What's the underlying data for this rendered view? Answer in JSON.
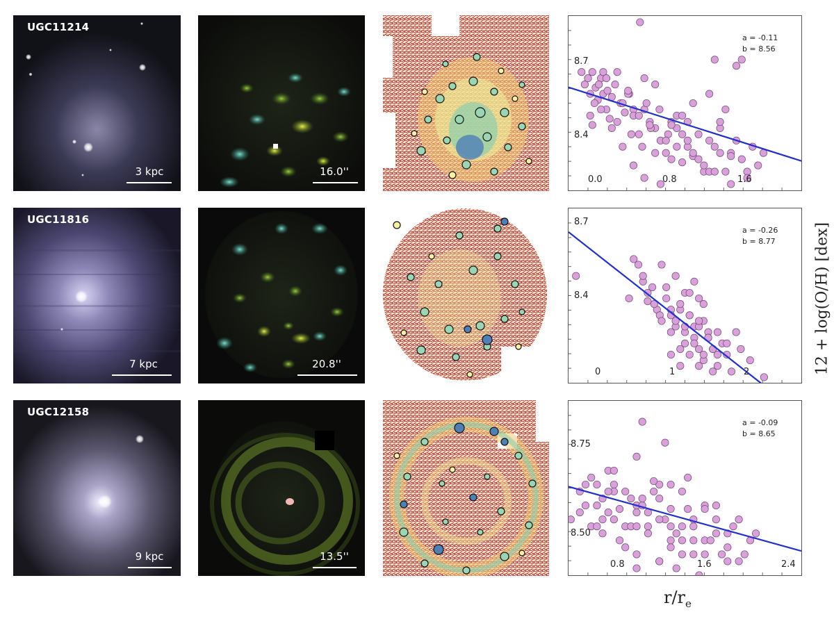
{
  "rows": [
    {
      "galaxy": "UGC11214",
      "physical_scale": "3 kpc",
      "angular_scale": "16.0''",
      "fit": {
        "a_label": "a = -0.11",
        "b_label": "b = 8.56",
        "slope": -0.11,
        "intercept": 8.56
      },
      "xticks": [
        "0.0",
        "0.8",
        "1.6"
      ],
      "yticks": [
        "8.7",
        "8.4"
      ]
    },
    {
      "galaxy": "UGC11816",
      "physical_scale": "7 kpc",
      "angular_scale": "20.8''",
      "fit": {
        "a_label": "a = -0.26",
        "b_label": "b = 8.77",
        "slope": -0.26,
        "intercept": 8.77
      },
      "xticks": [
        "0",
        "1",
        "2"
      ],
      "yticks": [
        "8.7",
        "8.4"
      ]
    },
    {
      "galaxy": "UGC12158",
      "physical_scale": "9 kpc",
      "angular_scale": "13.5''",
      "fit": {
        "a_label": "a = -0.09",
        "b_label": "b = 8.65",
        "slope": -0.09,
        "intercept": 8.65
      },
      "xticks": [
        "0.8",
        "1.6",
        "2.4"
      ],
      "yticks": [
        "8.75",
        "8.50"
      ]
    }
  ],
  "axis_labels": {
    "x": "r/r",
    "x_sub": "e",
    "y": "12 + log(O/H) [dex]"
  },
  "chart_data": [
    {
      "type": "scatter",
      "title": "",
      "xlabel": "r/re",
      "ylabel": "12 + log(O/H) [dex]",
      "xlim": [
        -0.1,
        2.05
      ],
      "ylim": [
        8.24,
        8.8
      ],
      "grid": false,
      "legend": "none",
      "annotations": [
        "a = -0.11",
        "b = 8.56"
      ],
      "fit_line": {
        "slope": -0.11,
        "intercept": 8.56
      },
      "series": [
        {
          "color": "#d9a0d9",
          "x": [
            0.02,
            0.05,
            0.08,
            0.1,
            0.12,
            0.15,
            0.17,
            0.2,
            0.22,
            0.25,
            0.1,
            0.14,
            0.18,
            0.22,
            0.26,
            0.3,
            0.12,
            0.2,
            0.28,
            0.33,
            0.38,
            0.42,
            0.46,
            0.5,
            0.3,
            0.35,
            0.4,
            0.45,
            0.5,
            0.55,
            0.6,
            0.65,
            0.4,
            0.48,
            0.55,
            0.62,
            0.7,
            0.75,
            0.8,
            0.85,
            0.5,
            0.58,
            0.66,
            0.74,
            0.82,
            0.9,
            0.95,
            1.0,
            0.6,
            0.7,
            0.8,
            0.9,
            1.0,
            1.05,
            1.1,
            1.15,
            1.2,
            0.75,
            0.85,
            0.95,
            1.05,
            1.15,
            1.25,
            1.3,
            1.35,
            1.4,
            0.9,
            1.0,
            1.1,
            1.2,
            1.3,
            1.4,
            1.45,
            1.5,
            1.55,
            1.6,
            1.65,
            1.1,
            1.25,
            1.4,
            1.55,
            0.56,
            0.7,
            1.25,
            1.45,
            1.5,
            0.35,
            0.65,
            0.95,
            1.2,
            1.35,
            0.45,
            0.25,
            0.6,
            1.05,
            1.3,
            0.85,
            1.7
          ],
          "y": [
            8.62,
            8.58,
            8.6,
            8.55,
            8.62,
            8.57,
            8.53,
            8.6,
            8.55,
            8.5,
            8.48,
            8.52,
            8.58,
            8.62,
            8.56,
            8.54,
            8.45,
            8.5,
            8.47,
            8.58,
            8.52,
            8.49,
            8.55,
            8.5,
            8.44,
            8.46,
            8.52,
            8.55,
            8.48,
            8.42,
            8.5,
            8.46,
            8.38,
            8.42,
            8.48,
            8.52,
            8.44,
            8.4,
            8.36,
            8.46,
            8.32,
            8.38,
            8.44,
            8.5,
            8.42,
            8.38,
            8.33,
            8.46,
            8.28,
            8.36,
            8.4,
            8.44,
            8.38,
            8.35,
            8.42,
            8.3,
            8.4,
            8.26,
            8.34,
            8.42,
            8.36,
            8.32,
            8.38,
            8.44,
            8.3,
            8.36,
            8.48,
            8.4,
            8.34,
            8.3,
            8.36,
            8.26,
            8.4,
            8.34,
            8.3,
            8.38,
            8.32,
            8.22,
            8.3,
            8.35,
            8.28,
            8.78,
            8.58,
            8.66,
            8.64,
            8.66,
            8.62,
            8.45,
            8.48,
            8.55,
            8.5,
            8.56,
            8.6,
            8.6,
            8.52,
            8.46,
            8.45,
            8.36
          ]
        }
      ]
    },
    {
      "type": "scatter",
      "title": "",
      "xlabel": "r/re",
      "ylabel": "12 + log(O/H) [dex]",
      "xlim": [
        -0.1,
        2.4
      ],
      "ylim": [
        8.26,
        8.88
      ],
      "grid": false,
      "legend": "none",
      "annotations": [
        "a = -0.26",
        "b = 8.77"
      ],
      "fit_line": {
        "slope": -0.26,
        "intercept": 8.77
      },
      "series": [
        {
          "color": "#d9a0d9",
          "x": [
            -0.02,
            0.55,
            0.65,
            0.7,
            0.75,
            0.8,
            0.85,
            0.6,
            0.7,
            0.75,
            0.82,
            0.88,
            0.95,
            1.0,
            0.9,
            0.95,
            1.0,
            1.05,
            1.1,
            1.15,
            1.0,
            1.05,
            1.1,
            1.15,
            1.2,
            1.25,
            1.3,
            1.1,
            1.15,
            1.2,
            1.25,
            1.3,
            1.35,
            1.4,
            1.2,
            1.25,
            1.3,
            1.35,
            1.4,
            1.45,
            1.5,
            1.3,
            1.35,
            1.4,
            1.45,
            1.5,
            1.55,
            1.6,
            1.65,
            1.7,
            1.75,
            1.85,
            2.0,
            1.25,
            1.35,
            0.9,
            1.05,
            1.2,
            1.15,
            1.3,
            1.4,
            1.5,
            1.6,
            1.45,
            1.0,
            1.1
          ],
          "y": [
            8.64,
            8.56,
            8.68,
            8.62,
            8.55,
            8.6,
            8.52,
            8.7,
            8.64,
            8.58,
            8.54,
            8.5,
            8.6,
            8.52,
            8.48,
            8.56,
            8.5,
            8.46,
            8.52,
            8.58,
            8.44,
            8.48,
            8.54,
            8.4,
            8.5,
            8.46,
            8.56,
            8.38,
            8.44,
            8.5,
            8.42,
            8.38,
            8.48,
            8.44,
            8.36,
            8.4,
            8.46,
            8.34,
            8.42,
            8.38,
            8.44,
            8.32,
            8.36,
            8.42,
            8.38,
            8.32,
            8.4,
            8.36,
            8.3,
            8.44,
            8.38,
            8.34,
            8.28,
            8.62,
            8.54,
            8.68,
            8.64,
            8.58,
            8.46,
            8.48,
            8.42,
            8.36,
            8.4,
            8.3,
            8.36,
            8.32
          ]
        }
      ]
    },
    {
      "type": "scatter",
      "title": "",
      "xlabel": "r/re",
      "ylabel": "12 + log(O/H) [dex]",
      "xlim": [
        0.4,
        2.45
      ],
      "ylim": [
        8.36,
        8.86
      ],
      "grid": false,
      "legend": "none",
      "annotations": [
        "a = -0.09",
        "b = 8.65"
      ],
      "fit_line": {
        "slope": -0.09,
        "intercept": 8.65
      },
      "series": [
        {
          "color": "#d9a0d9",
          "x": [
            0.42,
            0.5,
            0.55,
            0.6,
            0.65,
            0.7,
            0.75,
            0.8,
            0.6,
            0.65,
            0.7,
            0.75,
            0.8,
            0.85,
            0.9,
            0.95,
            1.0,
            0.7,
            0.8,
            0.9,
            1.0,
            1.1,
            1.2,
            1.3,
            0.85,
            0.95,
            1.05,
            1.15,
            1.25,
            1.35,
            1.45,
            0.9,
            1.0,
            1.1,
            1.2,
            1.3,
            1.4,
            1.5,
            1.6,
            1.0,
            1.1,
            1.2,
            1.3,
            1.4,
            1.5,
            1.6,
            1.7,
            1.8,
            1.2,
            1.3,
            1.4,
            1.5,
            1.6,
            1.7,
            1.8,
            1.9,
            2.0,
            1.35,
            1.5,
            1.65,
            1.8,
            1.95,
            1.05,
            1.25,
            1.0,
            1.45,
            0.55,
            0.75,
            1.15,
            1.4,
            1.7,
            1.9,
            2.05,
            0.5,
            0.65,
            1.55,
            1.75,
            1.0,
            1.2,
            0.8,
            1.3,
            1.05,
            1.6,
            1.85
          ],
          "y": [
            8.52,
            8.6,
            8.56,
            8.5,
            8.62,
            8.58,
            8.54,
            8.6,
            8.64,
            8.56,
            8.52,
            8.6,
            8.62,
            8.55,
            8.5,
            8.58,
            8.54,
            8.48,
            8.52,
            8.6,
            8.56,
            8.5,
            8.62,
            8.55,
            8.46,
            8.5,
            8.56,
            8.6,
            8.52,
            8.48,
            8.55,
            8.44,
            8.5,
            8.54,
            8.58,
            8.5,
            8.46,
            8.52,
            8.56,
            8.42,
            8.48,
            8.52,
            8.46,
            8.42,
            8.5,
            8.46,
            8.52,
            8.48,
            8.4,
            8.44,
            8.5,
            8.46,
            8.42,
            8.48,
            8.44,
            8.4,
            8.46,
            8.38,
            8.42,
            8.46,
            8.4,
            8.42,
            8.8,
            8.74,
            8.7,
            8.64,
            8.62,
            8.66,
            8.63,
            8.6,
            8.56,
            8.52,
            8.48,
            8.54,
            8.5,
            8.36,
            8.42,
            8.38,
            8.4,
            8.66,
            8.62,
            8.58,
            8.55,
            8.5
          ]
        }
      ]
    }
  ]
}
